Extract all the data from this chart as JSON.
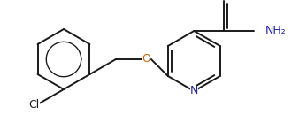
{
  "bg_color": "#ffffff",
  "line_color": "#1a1a1a",
  "atom_colors": {
    "N": "#2020aa",
    "O": "#cc6600",
    "Cl": "#1a1a1a"
  },
  "bond_lw": 1.4,
  "figsize": [
    3.38,
    1.47
  ],
  "dpi": 100
}
